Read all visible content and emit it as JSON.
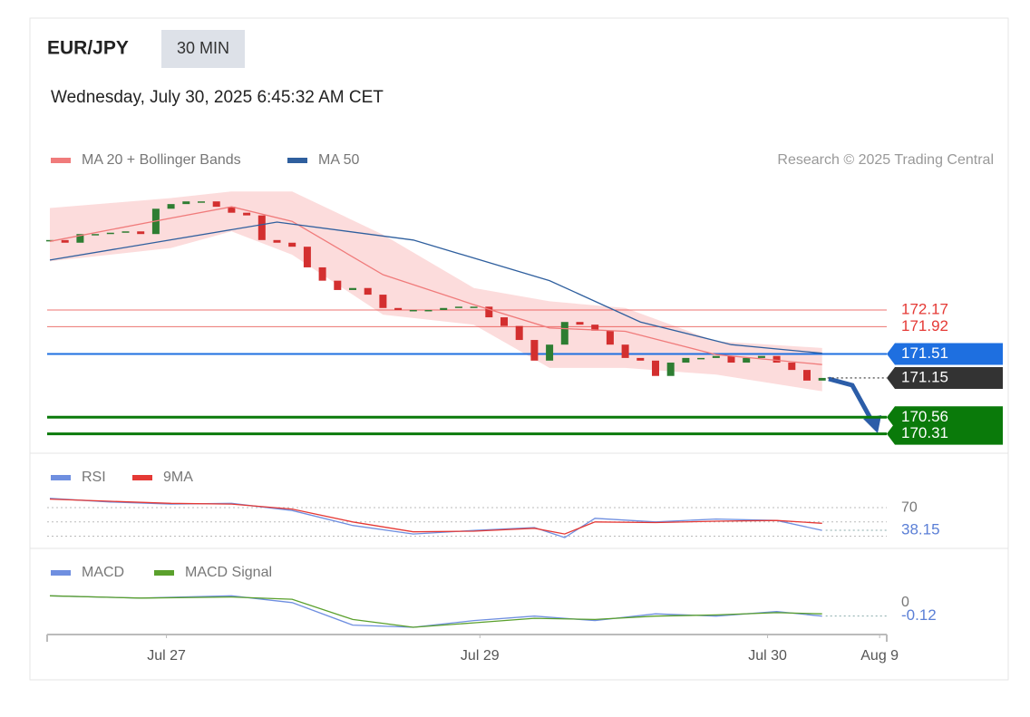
{
  "header": {
    "symbol": "EUR/JPY",
    "interval": "30 MIN",
    "timestamp": "Wednesday, July 30, 2025 6:45:32 AM CET",
    "credit": "Research © 2025 Trading Central"
  },
  "chart_data": [
    {
      "type": "candlestick",
      "up_color": "#2e7d32",
      "down_color": "#d32f2f",
      "xlim": [
        0,
        55
      ],
      "ylim": [
        169.9,
        174.0
      ],
      "values": [
        173.22,
        173.18,
        173.31,
        173.31,
        173.33,
        173.35,
        173.31,
        173.69,
        173.76,
        173.8,
        173.8,
        173.72,
        173.63,
        173.59,
        173.22,
        173.18,
        173.12,
        172.81,
        172.61,
        172.47,
        172.5,
        172.4,
        172.2,
        172.17,
        172.17,
        172.17,
        172.2,
        172.22,
        172.22,
        172.06,
        171.93,
        171.72,
        171.41,
        171.65,
        171.99,
        171.95,
        171.86,
        171.65,
        171.45,
        171.41,
        171.18,
        171.38,
        171.45,
        171.45,
        171.48,
        171.38,
        171.45,
        171.48,
        171.38,
        171.27,
        171.11,
        171.15
      ],
      "series": [
        {
          "name": "MA 20 + Bollinger Bands",
          "color": "#f07b7b",
          "band_color": "#fbd3d3",
          "x": [
            0,
            8,
            12,
            16,
            22,
            28,
            33,
            38,
            44,
            51
          ],
          "values": [
            173.2,
            173.55,
            173.72,
            173.5,
            172.7,
            172.25,
            171.9,
            171.85,
            171.5,
            171.35
          ],
          "upper": [
            173.7,
            173.85,
            173.95,
            173.95,
            173.3,
            172.5,
            172.3,
            172.2,
            171.7,
            171.6
          ],
          "lower": [
            172.9,
            173.1,
            173.35,
            173.0,
            172.1,
            171.95,
            171.3,
            171.3,
            171.2,
            170.95
          ]
        },
        {
          "name": "MA 50",
          "color": "#2f5f9e",
          "x": [
            0,
            15,
            24,
            33,
            39,
            45,
            51
          ],
          "values": [
            172.92,
            173.49,
            173.22,
            172.61,
            171.99,
            171.65,
            171.52
          ]
        }
      ],
      "levels": [
        {
          "value": 172.17,
          "color": "#e53935",
          "style": "text",
          "line": "thin"
        },
        {
          "value": 171.92,
          "color": "#e53935",
          "style": "text",
          "line": "thin"
        },
        {
          "value": 171.51,
          "color": "#1e6fe0",
          "style": "box",
          "line": "medium"
        },
        {
          "value": 171.15,
          "color": "#333333",
          "style": "box",
          "line": "dotted"
        },
        {
          "value": 170.56,
          "color": "#0a7a0a",
          "style": "box",
          "line": "thick"
        },
        {
          "value": 170.31,
          "color": "#0a7a0a",
          "style": "box",
          "line": "thick"
        }
      ]
    },
    {
      "type": "line",
      "xlim": [
        0,
        55
      ],
      "ylim": [
        0,
        100
      ],
      "yticks": [
        70
      ],
      "minor_yticks": [
        50,
        30
      ],
      "grid": true,
      "last_value_color": "#5b7fd6",
      "series": [
        {
          "name": "RSI",
          "color": "#6f8fe0",
          "x": [
            0,
            4,
            8,
            12,
            16,
            20,
            24,
            28,
            32,
            34,
            36,
            40,
            44,
            48,
            51
          ],
          "values": [
            83,
            78,
            75,
            76,
            66,
            45,
            33,
            38,
            42,
            28,
            55,
            50,
            54,
            52,
            38.15
          ]
        },
        {
          "name": "9MA",
          "color": "#e53935",
          "x": [
            0,
            4,
            8,
            12,
            16,
            20,
            24,
            28,
            32,
            34,
            36,
            40,
            44,
            48,
            51
          ],
          "values": [
            82,
            79,
            76,
            75,
            68,
            50,
            36,
            37,
            41,
            33,
            50,
            49,
            51,
            52,
            48
          ]
        }
      ]
    },
    {
      "type": "line",
      "xlim": [
        0,
        55
      ],
      "ylim": [
        -0.26,
        0.2
      ],
      "yticks": [
        0
      ],
      "grid": false,
      "last_value_color": "#5b7fd6",
      "series": [
        {
          "name": "MACD",
          "color": "#6f8fe0",
          "x": [
            0,
            6,
            12,
            16,
            20,
            24,
            28,
            32,
            36,
            40,
            44,
            48,
            51
          ],
          "values": [
            0.06,
            0.04,
            0.06,
            0.0,
            -0.2,
            -0.22,
            -0.16,
            -0.12,
            -0.16,
            -0.1,
            -0.12,
            -0.08,
            -0.12
          ]
        },
        {
          "name": "MACD Signal",
          "color": "#5aa02c",
          "x": [
            0,
            6,
            12,
            16,
            20,
            24,
            28,
            32,
            36,
            40,
            44,
            48,
            51
          ],
          "values": [
            0.06,
            0.04,
            0.05,
            0.03,
            -0.15,
            -0.22,
            -0.18,
            -0.14,
            -0.15,
            -0.12,
            -0.11,
            -0.09,
            -0.1
          ]
        }
      ],
      "xticks": [
        {
          "value": 7.7,
          "label": "Jul 27"
        },
        {
          "value": 28.4,
          "label": "Jul 29"
        },
        {
          "value": 47.4,
          "label": "Jul 30"
        },
        {
          "value": 54.8,
          "label": "Aug 9"
        }
      ]
    }
  ]
}
